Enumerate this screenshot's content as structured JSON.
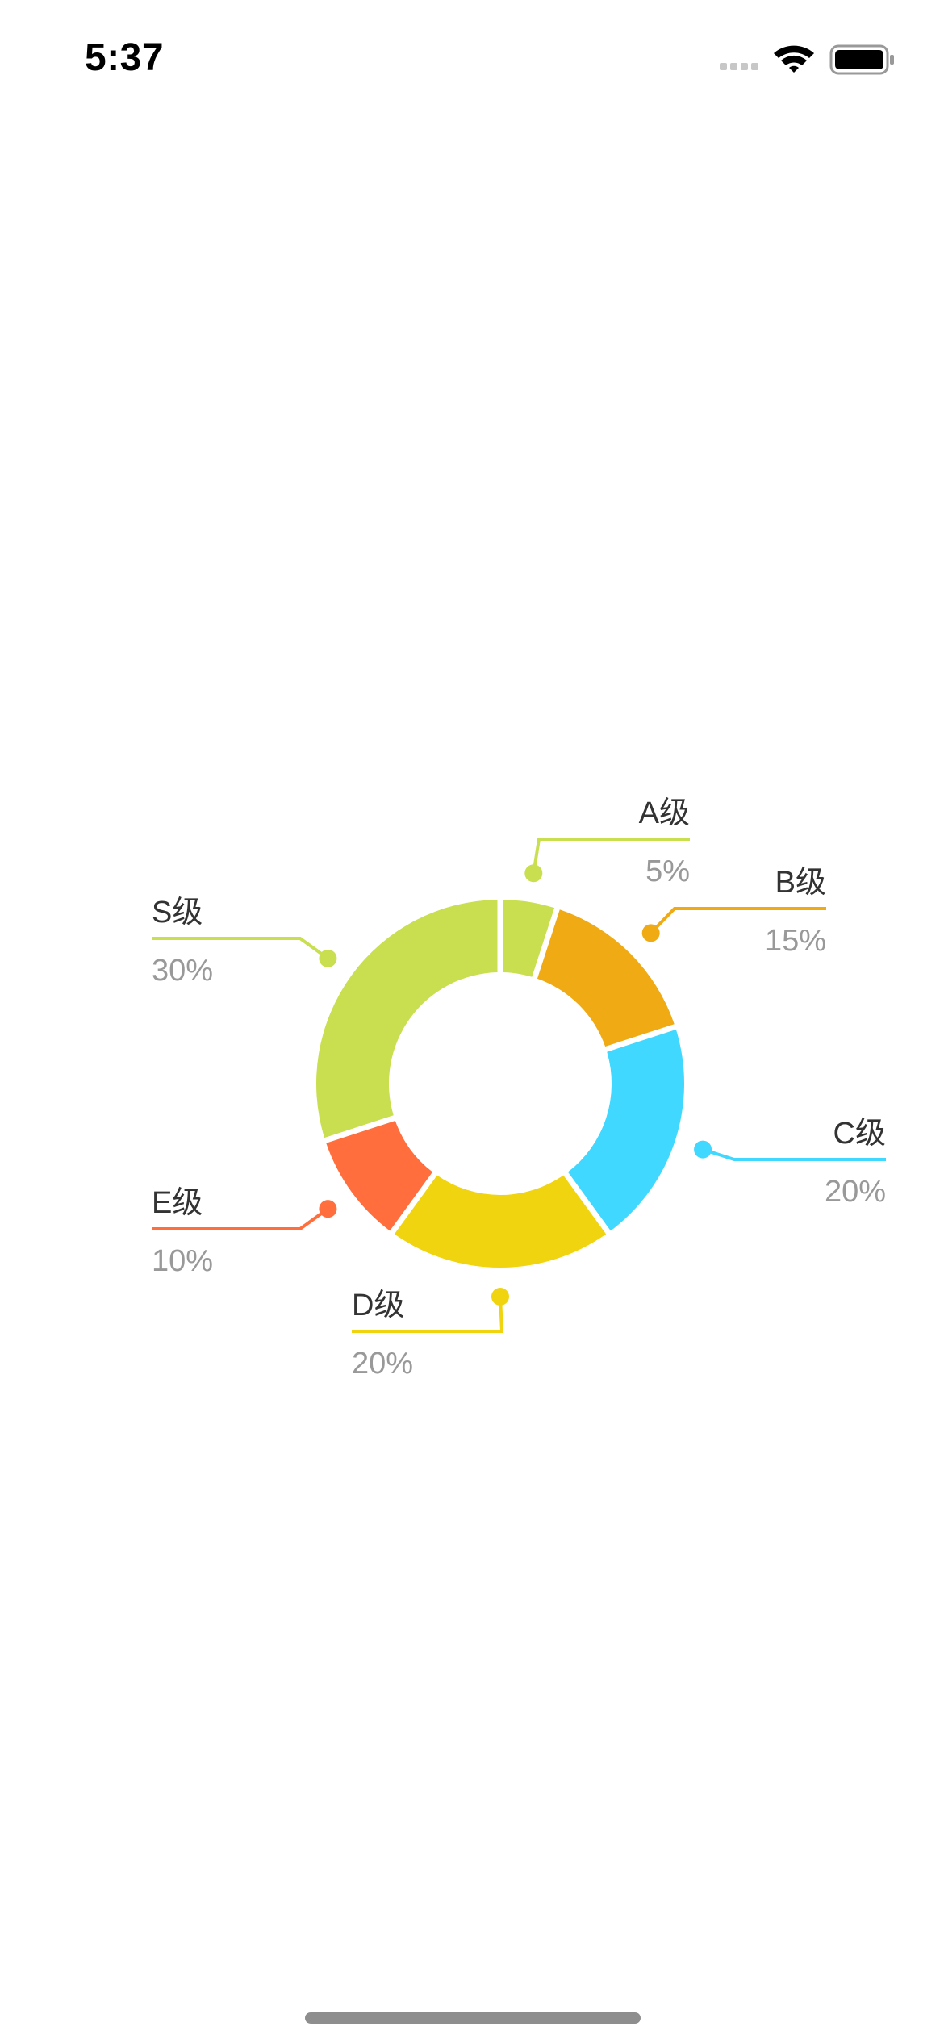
{
  "status_bar": {
    "time": "5:37",
    "icons": [
      "cellular-signal-icon",
      "wifi-icon",
      "battery-icon"
    ]
  },
  "chart_data": {
    "type": "pie",
    "style": "donut",
    "start_angle_deg": 0,
    "direction": "clockwise",
    "slices": [
      {
        "label": "A级",
        "value_label": "5%",
        "value": 5,
        "color": "#c9df4f",
        "label_side": "right"
      },
      {
        "label": "B级",
        "value_label": "15%",
        "value": 15,
        "color": "#f0aa14",
        "label_side": "right"
      },
      {
        "label": "C级",
        "value_label": "20%",
        "value": 20,
        "color": "#40d8ff",
        "label_side": "right"
      },
      {
        "label": "D级",
        "value_label": "20%",
        "value": 20,
        "color": "#f0d40f",
        "label_side": "left"
      },
      {
        "label": "E级",
        "value_label": "10%",
        "value": 10,
        "color": "#ff6e3c",
        "label_side": "left"
      },
      {
        "label": "S级",
        "value_label": "30%",
        "value": 30,
        "color": "#c9df4f",
        "label_side": "left"
      }
    ],
    "label_color": "#333333",
    "value_color": "#999999"
  }
}
